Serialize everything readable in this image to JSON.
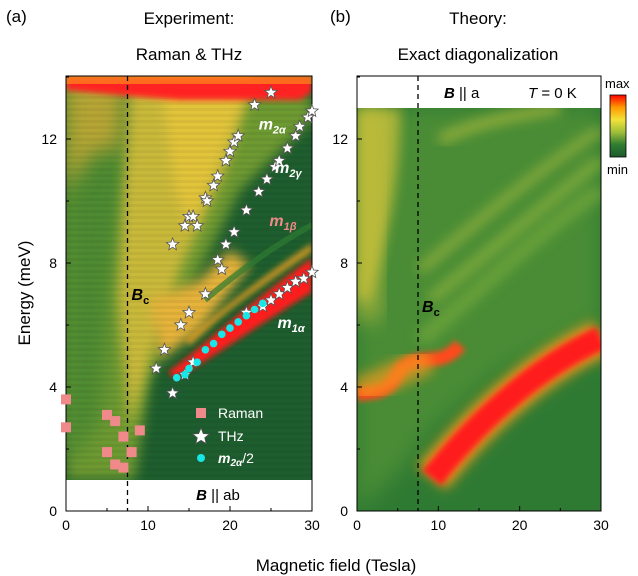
{
  "figure": {
    "shared_xlabel": "Magnetic field (Tesla)",
    "shared_ylabel": "Energy (meV)"
  },
  "colorbar": {
    "max_label": "max",
    "min_label": "min",
    "colors": [
      "#ff0000",
      "#ff9a00",
      "#f2e23a",
      "#9fbf3a",
      "#2f7d32",
      "#1d5a2b"
    ]
  },
  "colors": {
    "bg_dark_green": "#1e5e2e",
    "green": "#3e8a35",
    "olive": "#a8a838",
    "yellow": "#e8c73a",
    "orange": "#f29a1e",
    "red": "#ff1a1a",
    "raman": "#f08a8a",
    "thz_star_fill": "#ffffff",
    "m2a_half": "#19e6e6",
    "m1b_label": "#f08a8a"
  },
  "chart_data": [
    {
      "type": "heatmap",
      "panel_label": "(a)",
      "title_line1": "Experiment:",
      "title_line2": "Raman & THz",
      "xlim": [
        0,
        30
      ],
      "ylim": [
        0,
        14
      ],
      "xticks": [
        "0",
        "10",
        "20",
        "30"
      ],
      "yticks": [
        "0",
        "4",
        "8",
        "12"
      ],
      "bc_field": 7.5,
      "bc_label": "B",
      "bc_sub": "c",
      "field_annotation": {
        "b": "B",
        "rel": "|| ab"
      },
      "legend_position": "lower-right",
      "legend": [
        {
          "key": "raman",
          "label": "Raman"
        },
        {
          "key": "thz",
          "label": "THz"
        },
        {
          "key": "m2a_half",
          "label": "m",
          "sub": "2α",
          "suffix": "/2"
        }
      ],
      "mode_labels": [
        {
          "key": "m2a",
          "text": "m",
          "sub": "2α",
          "at": [
            23.5,
            12.3
          ]
        },
        {
          "key": "m2g",
          "text": "m",
          "sub": "2γ",
          "at": [
            25.5,
            10.9
          ]
        },
        {
          "key": "m1b",
          "text": "m",
          "sub": "1β",
          "at": [
            24.8,
            9.2
          ]
        },
        {
          "key": "m1a",
          "text": "m",
          "sub": "1α",
          "at": [
            25.8,
            5.9
          ]
        }
      ],
      "raman": [
        [
          0,
          3.6
        ],
        [
          0,
          2.7
        ],
        [
          5,
          3.1
        ],
        [
          6,
          2.9
        ],
        [
          7,
          2.4
        ],
        [
          8,
          1.9
        ],
        [
          9,
          2.6
        ],
        [
          5,
          1.9
        ],
        [
          6,
          1.5
        ],
        [
          7,
          1.4
        ]
      ],
      "thz_m2a": [
        [
          13,
          8.6
        ],
        [
          14.5,
          9.2
        ],
        [
          15,
          9.5
        ],
        [
          15.5,
          9.5
        ],
        [
          16,
          9.2
        ],
        [
          17,
          10.1
        ],
        [
          17.2,
          10.0
        ],
        [
          18,
          10.5
        ],
        [
          18.5,
          10.8
        ],
        [
          19.5,
          11.3
        ],
        [
          20,
          11.6
        ],
        [
          20.5,
          11.9
        ],
        [
          21,
          12.1
        ],
        [
          23,
          13.1
        ],
        [
          25,
          13.5
        ]
      ],
      "thz_m2g": [
        [
          18.5,
          8.1
        ],
        [
          19.5,
          8.6
        ],
        [
          20.5,
          9.0
        ],
        [
          22,
          9.7
        ],
        [
          23.5,
          10.3
        ],
        [
          24.5,
          10.7
        ],
        [
          25.5,
          11.1
        ],
        [
          26,
          11.3
        ],
        [
          27,
          11.7
        ],
        [
          28,
          12.1
        ],
        [
          28.5,
          12.4
        ],
        [
          29.5,
          12.7
        ],
        [
          30,
          12.9
        ]
      ],
      "thz_m1a": [
        [
          11,
          4.6
        ],
        [
          12,
          5.2
        ],
        [
          13,
          3.8
        ],
        [
          14,
          6.0
        ],
        [
          14.5,
          4.4
        ],
        [
          15,
          6.4
        ],
        [
          15.5,
          4.8
        ],
        [
          17,
          7.0
        ],
        [
          19,
          7.8
        ],
        [
          22,
          6.4
        ],
        [
          24,
          6.6
        ],
        [
          25,
          6.8
        ],
        [
          26,
          7.0
        ],
        [
          27,
          7.2
        ],
        [
          28,
          7.4
        ],
        [
          29,
          7.5
        ],
        [
          30,
          7.7
        ]
      ],
      "m2a_half": [
        [
          13.5,
          4.3
        ],
        [
          14.5,
          4.4
        ],
        [
          15,
          4.6
        ],
        [
          16,
          4.8
        ],
        [
          17,
          5.2
        ],
        [
          18,
          5.4
        ],
        [
          19,
          5.7
        ],
        [
          20,
          5.9
        ],
        [
          21,
          6.1
        ],
        [
          22,
          6.3
        ],
        [
          23,
          6.5
        ],
        [
          24,
          6.7
        ]
      ]
    },
    {
      "type": "heatmap",
      "panel_label": "(b)",
      "title_line1": "Theory:",
      "title_line2": "Exact diagonalization",
      "xlim": [
        0,
        30
      ],
      "ylim": [
        0,
        14
      ],
      "xticks": [
        "0",
        "10",
        "20",
        "30"
      ],
      "yticks": [
        "0",
        "4",
        "8",
        "12"
      ],
      "bc_field": 7.5,
      "bc_label": "B",
      "bc_sub": "c",
      "field_annotation": {
        "b": "B",
        "rel": "|| a"
      },
      "temperature": {
        "t": "T",
        "value": "= 0 K"
      }
    }
  ]
}
